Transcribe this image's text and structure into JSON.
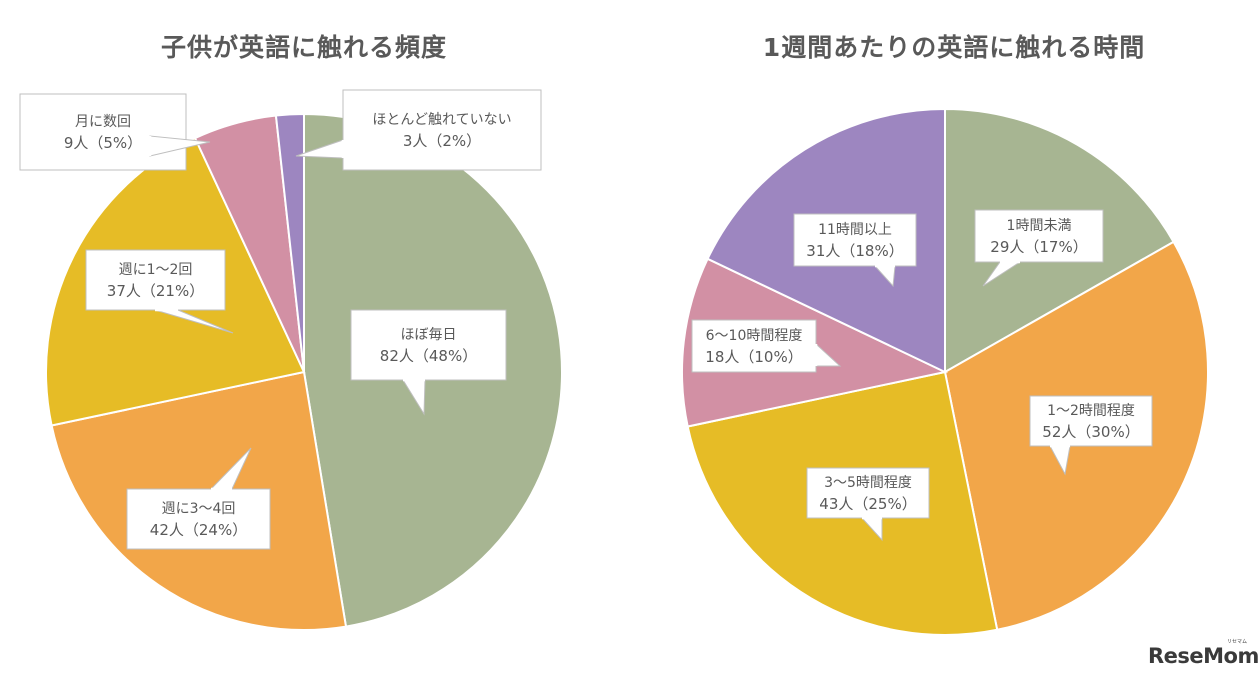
{
  "chart_data": [
    {
      "type": "pie",
      "title": "子供が英語に触れる頻度",
      "slices": [
        {
          "category": "ほぼ毎日",
          "count_label": "82人（48%）",
          "value": 82,
          "percent": 48,
          "color": "#a7b592"
        },
        {
          "category": "週に3〜4回",
          "count_label": "42人（24%）",
          "value": 42,
          "percent": 24,
          "color": "#f2a649"
        },
        {
          "category": "週に1〜2回",
          "count_label": "37人（21%）",
          "value": 37,
          "percent": 21,
          "color": "#e6bc26"
        },
        {
          "category": "月に数回",
          "count_label": "9人（5%）",
          "value": 9,
          "percent": 5,
          "color": "#d290a4"
        },
        {
          "category": "ほとんど触れていない",
          "count_label": "3人（2%）",
          "value": 3,
          "percent": 2,
          "color": "#9d86c0"
        }
      ]
    },
    {
      "type": "pie",
      "title": "1週間あたりの英語に触れる時間",
      "slices": [
        {
          "category": "1時間未満",
          "count_label": "29人（17%）",
          "value": 29,
          "percent": 17,
          "color": "#a7b592"
        },
        {
          "category": "1〜2時間程度",
          "count_label": "52人（30%）",
          "value": 52,
          "percent": 30,
          "color": "#f2a649"
        },
        {
          "category": "3〜5時間程度",
          "count_label": "43人（25%）",
          "value": 43,
          "percent": 25,
          "color": "#e6bc26"
        },
        {
          "category": "6〜10時間程度",
          "count_label": "18人（10%）",
          "value": 18,
          "percent": 10,
          "color": "#d290a4"
        },
        {
          "category": "11時間以上",
          "count_label": "31人（18%）",
          "value": 31,
          "percent": 18,
          "color": "#9d86c0"
        }
      ]
    }
  ],
  "logo": {
    "text": "ReseMom",
    "subtext": "リセマム"
  }
}
